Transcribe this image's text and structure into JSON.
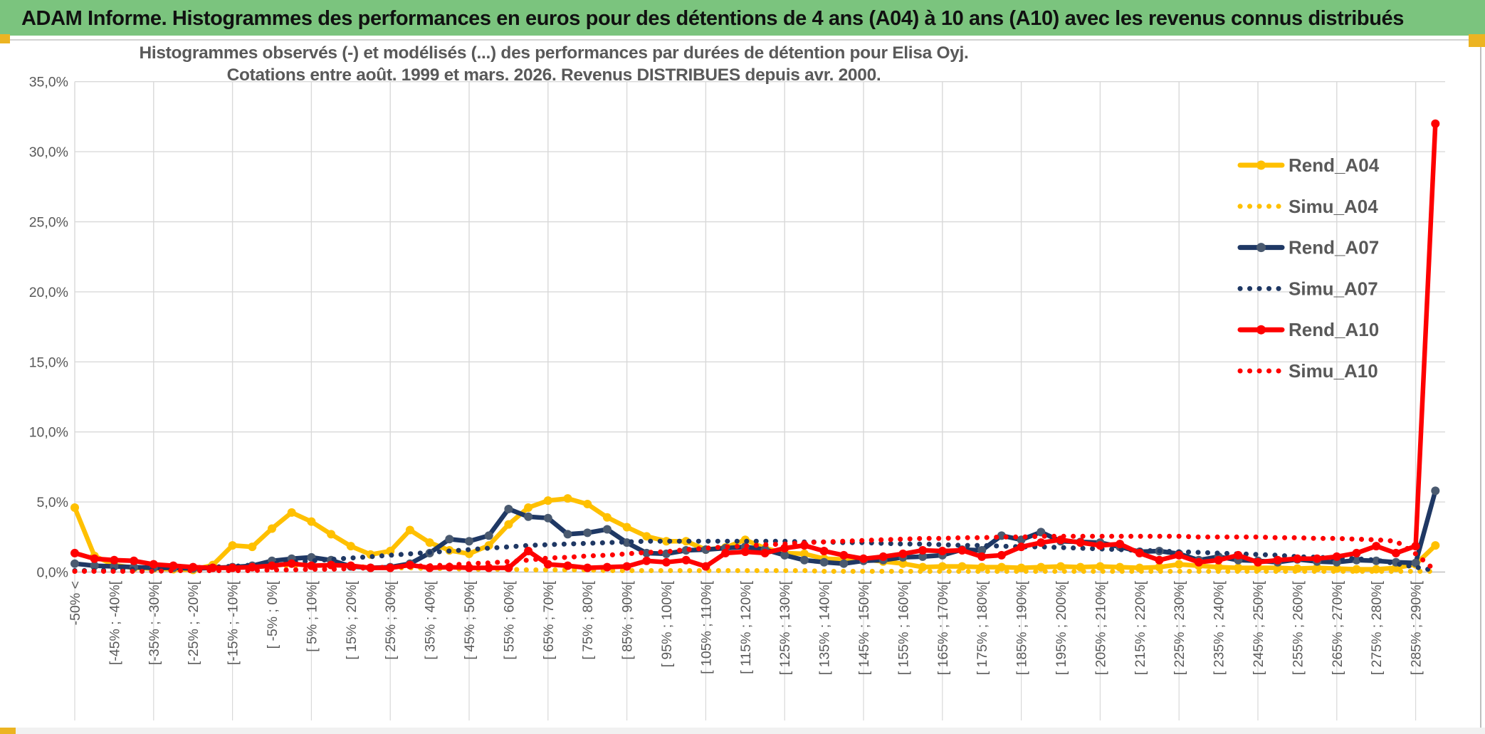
{
  "header": {
    "title": "ADAM Informe. Histogrammes des performances en euros pour des détentions de 4 ans (A04) à 10 ans (A10) avec les revenus connus distribués"
  },
  "colors": {
    "header_green": "#7bc47e",
    "accent_gold": "#ecb422",
    "grid": "#d9d9d9",
    "axis": "#bfbfbf",
    "text_gray": "#595959",
    "series_gold": "#FFC000",
    "series_navy": "#1F3864",
    "series_navy_marker": "#4a5a70",
    "series_red": "#FE0000"
  },
  "chart_data": {
    "type": "line",
    "title_line1": "Histogrammes observés (-) et modélisés (...) des performances par durées de détention pour Elisa Oyj.",
    "title_line2": "Cotations entre août. 1999 et mars. 2026. Revenus DISTRIBUES depuis avr. 2000.",
    "xlabel": "",
    "ylabel": "",
    "ylim": [
      0,
      35
    ],
    "ytick_step": 5,
    "grid": true,
    "legend_position": "right-inside",
    "ytick_labels": [
      "0,0%",
      "5,0%",
      "10,0%",
      "15,0%",
      "20,0%",
      "25,0%",
      "30,0%",
      "35,0%"
    ],
    "categories": [
      "-50% <",
      "",
      "[-45% ; -40%[",
      "",
      "[-35% ; -30%[",
      "",
      "[-25% ; -20%[",
      "",
      "[-15% ; -10%[",
      "",
      "[ -5% ; 0%[",
      "",
      "[ 5% ; 10%[",
      "",
      "[ 15% ; 20%[",
      "",
      "[ 25% ; 30%[",
      "",
      "[ 35% ; 40%[",
      "",
      "[ 45% ; 50%[",
      "",
      "[ 55% ; 60%[",
      "",
      "[ 65% ; 70%[",
      "",
      "[ 75% ; 80%[",
      "",
      "[ 85% ; 90%[",
      "",
      "[ 95% ; 100%[",
      "",
      "[ 105% ; 110%[",
      "",
      "[ 115% ; 120%[",
      "",
      "[ 125% ; 130%[",
      "",
      "[ 135% ; 140%[",
      "",
      "[ 145% ; 150%[",
      "",
      "[ 155% ; 160%[",
      "",
      "[ 165% ; 170%[",
      "",
      "[ 175% ; 180%[",
      "",
      "[ 185% ; 190%[",
      "",
      "[ 195% ; 200%[",
      "",
      "[ 205% ; 210%[",
      "",
      "[ 215% ; 220%[",
      "",
      "[ 225% ; 230%[",
      "",
      "[ 235% ; 240%[",
      "",
      "[ 245% ; 250%[",
      "",
      "[ 255% ; 260%[",
      "",
      "[ 265% ; 270%[",
      "",
      "[ 275% ; 280%[",
      "",
      "[ 285% ; 290%[",
      ""
    ],
    "series": [
      {
        "name": "Rend_A04",
        "style": "solid",
        "color": "#FFC000",
        "marker_color": "#FFC000",
        "values": [
          4.6,
          1.15,
          0.5,
          0.3,
          0.25,
          0.2,
          0.15,
          0.5,
          1.9,
          1.8,
          3.1,
          4.25,
          3.6,
          2.7,
          1.85,
          1.25,
          1.5,
          3.0,
          2.1,
          1.55,
          1.3,
          1.9,
          3.4,
          4.6,
          5.1,
          5.25,
          4.85,
          3.9,
          3.2,
          2.55,
          2.2,
          2.2,
          1.6,
          1.75,
          2.3,
          1.7,
          1.35,
          1.3,
          0.95,
          0.9,
          0.9,
          0.75,
          0.6,
          0.35,
          0.4,
          0.4,
          0.35,
          0.35,
          0.3,
          0.35,
          0.4,
          0.35,
          0.4,
          0.35,
          0.3,
          0.35,
          0.55,
          0.45,
          0.35,
          0.3,
          0.3,
          0.3,
          0.25,
          0.3,
          0.25,
          0.2,
          0.2,
          0.3,
          0.55,
          1.9
        ]
      },
      {
        "name": "Simu_A04",
        "style": "dotted",
        "color": "#FFC000",
        "values": [
          0.05,
          0.1,
          0.1,
          0.15,
          0.2,
          0.25,
          0.3,
          0.35,
          0.4,
          0.45,
          0.45,
          0.45,
          0.45,
          0.4,
          0.4,
          0.35,
          0.3,
          0.3,
          0.25,
          0.25,
          0.2,
          0.2,
          0.2,
          0.15,
          0.15,
          0.15,
          0.15,
          0.1,
          0.1,
          0.1,
          0.1,
          0.1,
          0.1,
          0.1,
          0.1,
          0.1,
          0.1,
          0.1,
          0.05,
          0.05,
          0.05,
          0.05,
          0.05,
          0.05,
          0.05,
          0.05,
          0.05,
          0.05,
          0.05,
          0.05,
          0.05,
          0.05,
          0.05,
          0.05,
          0.05,
          0.05,
          0.05,
          0.05,
          0.05,
          0.05,
          0.05,
          0.05,
          0.05,
          0.05,
          0.05,
          0.05,
          0.05,
          0.05,
          0.05,
          0.05
        ]
      },
      {
        "name": "Rend_A07",
        "style": "solid",
        "color": "#1F3864",
        "marker_color": "#4a5a70",
        "values": [
          0.6,
          0.45,
          0.4,
          0.35,
          0.3,
          0.3,
          0.25,
          0.3,
          0.35,
          0.45,
          0.8,
          0.95,
          1.05,
          0.85,
          0.4,
          0.3,
          0.35,
          0.6,
          1.35,
          2.35,
          2.2,
          2.6,
          4.5,
          3.95,
          3.85,
          2.7,
          2.8,
          3.05,
          2.1,
          1.35,
          1.3,
          1.55,
          1.6,
          1.7,
          1.8,
          1.6,
          1.2,
          0.85,
          0.7,
          0.6,
          0.8,
          0.85,
          1.05,
          1.1,
          1.2,
          1.6,
          1.55,
          2.6,
          2.3,
          2.85,
          2.2,
          2.15,
          2.1,
          1.8,
          1.45,
          1.5,
          1.3,
          0.85,
          1.1,
          0.85,
          0.8,
          0.7,
          0.9,
          0.75,
          0.7,
          0.85,
          0.8,
          0.7,
          0.65,
          5.8
        ]
      },
      {
        "name": "Simu_A07",
        "style": "dotted",
        "color": "#1F3864",
        "values": [
          0.1,
          0.1,
          0.15,
          0.2,
          0.2,
          0.25,
          0.3,
          0.35,
          0.4,
          0.5,
          0.6,
          0.7,
          0.8,
          0.9,
          1.0,
          1.1,
          1.2,
          1.3,
          1.4,
          1.5,
          1.6,
          1.7,
          1.8,
          1.9,
          1.95,
          2.0,
          2.05,
          2.1,
          2.15,
          2.2,
          2.2,
          2.2,
          2.2,
          2.2,
          2.2,
          2.2,
          2.2,
          2.15,
          2.15,
          2.1,
          2.1,
          2.05,
          2.0,
          2.0,
          1.95,
          1.9,
          1.9,
          1.85,
          1.8,
          1.8,
          1.75,
          1.7,
          1.65,
          1.6,
          1.55,
          1.5,
          1.45,
          1.4,
          1.35,
          1.3,
          1.25,
          1.2,
          1.1,
          1.05,
          1.0,
          0.95,
          0.85,
          0.6,
          0.35,
          0.1
        ]
      },
      {
        "name": "Rend_A10",
        "style": "solid",
        "color": "#FE0000",
        "marker_color": "#FE0000",
        "values": [
          1.35,
          0.95,
          0.85,
          0.8,
          0.55,
          0.45,
          0.35,
          0.3,
          0.3,
          0.35,
          0.45,
          0.6,
          0.45,
          0.5,
          0.45,
          0.3,
          0.3,
          0.5,
          0.3,
          0.35,
          0.3,
          0.3,
          0.3,
          1.5,
          0.55,
          0.45,
          0.3,
          0.35,
          0.4,
          0.8,
          0.7,
          0.85,
          0.4,
          1.35,
          1.45,
          1.35,
          1.7,
          1.9,
          1.5,
          1.2,
          0.95,
          1.1,
          1.3,
          1.55,
          1.5,
          1.55,
          1.1,
          1.2,
          1.8,
          2.1,
          2.3,
          2.1,
          1.9,
          2.0,
          1.35,
          0.85,
          1.2,
          0.7,
          0.85,
          1.2,
          0.7,
          0.85,
          0.95,
          0.95,
          1.1,
          1.35,
          1.85,
          1.35,
          1.85,
          32.0
        ]
      },
      {
        "name": "Simu_A10",
        "style": "dotted",
        "color": "#FE0000",
        "values": [
          0.05,
          0.05,
          0.05,
          0.05,
          0.05,
          0.1,
          0.1,
          0.1,
          0.1,
          0.1,
          0.15,
          0.15,
          0.2,
          0.2,
          0.25,
          0.3,
          0.35,
          0.4,
          0.45,
          0.5,
          0.6,
          0.65,
          0.75,
          0.85,
          1.0,
          1.05,
          1.15,
          1.2,
          1.3,
          1.4,
          1.45,
          1.6,
          1.7,
          1.8,
          1.85,
          1.95,
          2.0,
          2.1,
          2.15,
          2.2,
          2.25,
          2.3,
          2.35,
          2.4,
          2.4,
          2.45,
          2.45,
          2.5,
          2.5,
          2.55,
          2.55,
          2.55,
          2.55,
          2.55,
          2.55,
          2.55,
          2.55,
          2.5,
          2.5,
          2.5,
          2.5,
          2.45,
          2.45,
          2.4,
          2.4,
          2.35,
          2.3,
          2.2,
          1.3,
          0.1
        ]
      }
    ]
  }
}
